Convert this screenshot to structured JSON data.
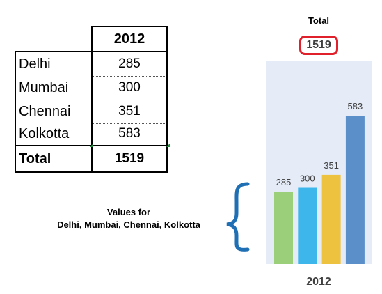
{
  "table": {
    "header": "2012",
    "rows": [
      {
        "name": "Delhi",
        "value": "285"
      },
      {
        "name": "Mumbai",
        "value": "300"
      },
      {
        "name": "Chennai",
        "value": "351"
      },
      {
        "name": "Kolkotta",
        "value": "583"
      }
    ],
    "total_label": "Total",
    "total_value": "1519"
  },
  "total_callout": {
    "label": "Total",
    "value": "1519",
    "highlight_color": "#e0202a"
  },
  "annotation": {
    "line1": "Values for",
    "line2": "Delhi, Mumbai, Chennai, Kolkotta",
    "brace_color": "#1f6fb5"
  },
  "chart_data": {
    "type": "bar",
    "categories": [
      "Delhi",
      "Mumbai",
      "Chennai",
      "Kolkotta"
    ],
    "values": [
      285,
      300,
      351,
      583
    ],
    "colors": [
      "#9bcf7a",
      "#3db6ec",
      "#ecc23f",
      "#5b8fc9"
    ],
    "x_category_label": "2012",
    "data_labels": true,
    "ylim": [
      0,
      800
    ],
    "grid": false,
    "legend": "none",
    "plot_background": "#e5ecf7"
  }
}
